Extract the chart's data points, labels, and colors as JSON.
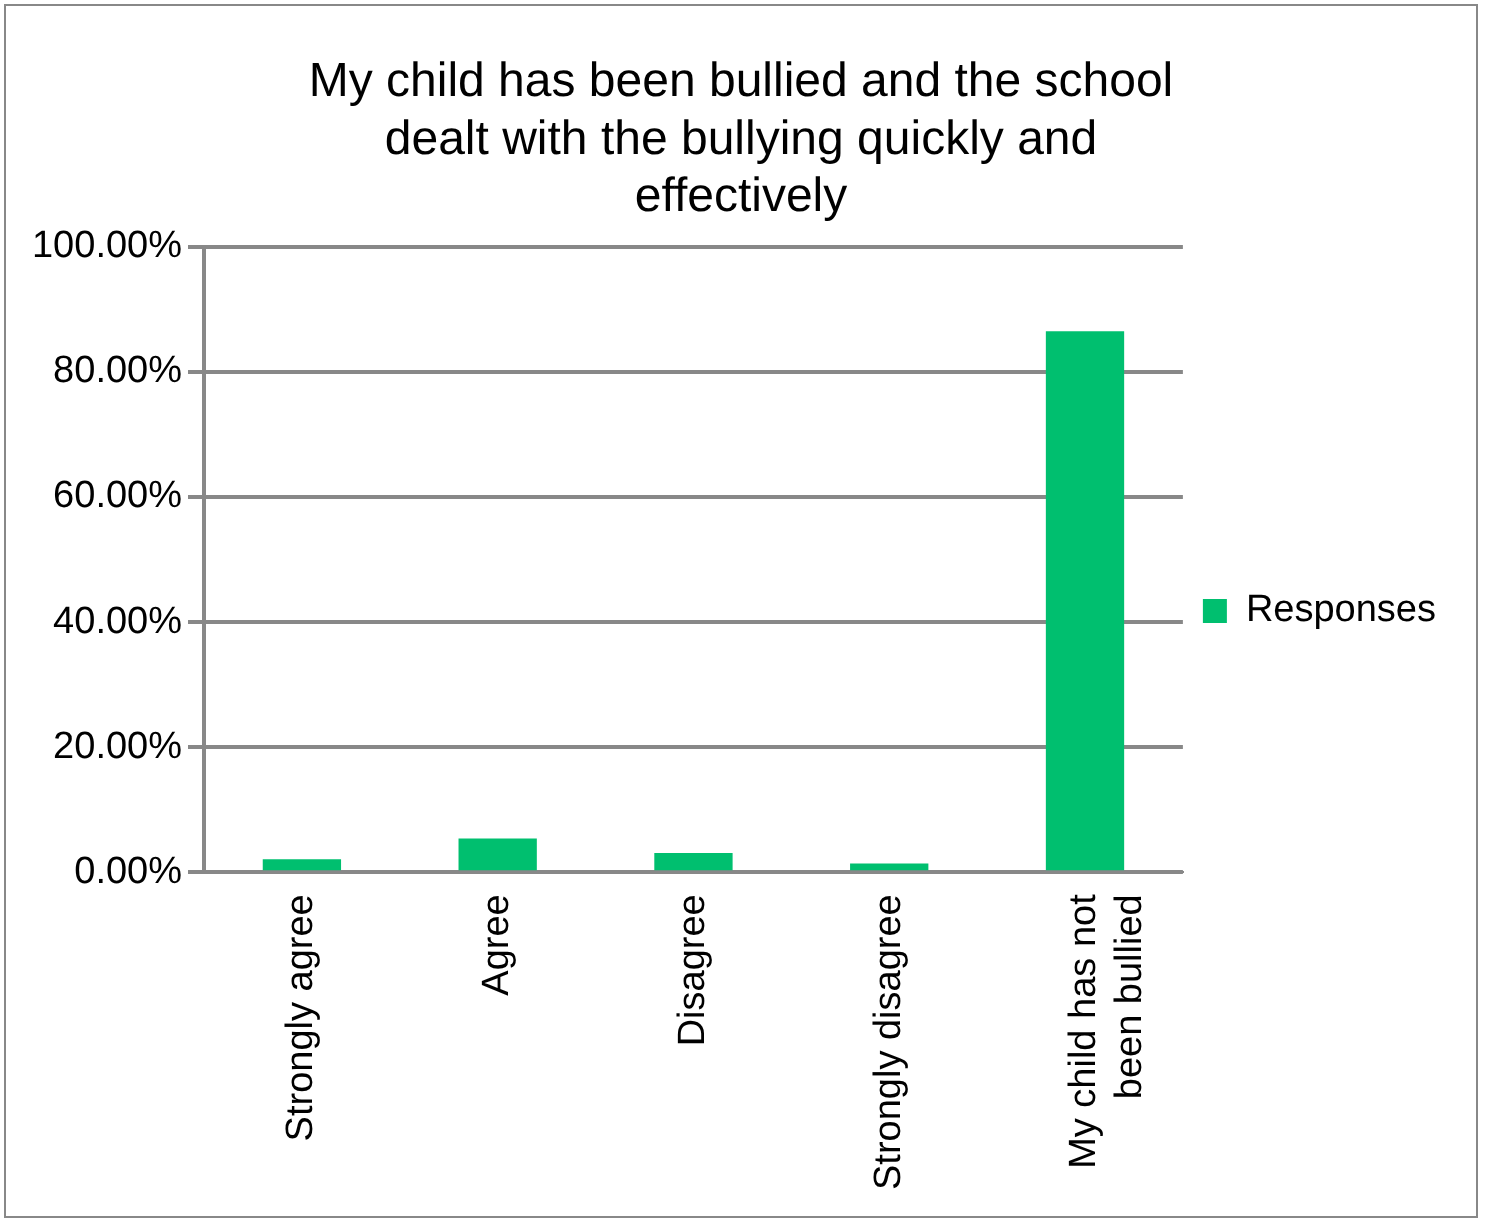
{
  "chart_data": {
    "type": "bar",
    "title": "My child has been bullied and the school dealt with the bullying quickly and effectively",
    "categories": [
      "Strongly agree",
      "Agree",
      "Disagree",
      "Strongly disagree",
      "My child has not been bullied"
    ],
    "series": [
      {
        "name": "Responses",
        "color": "#00bf6f",
        "values": [
          2.1,
          5.4,
          3.1,
          1.4,
          86.5
        ]
      }
    ],
    "ylim": [
      0,
      100
    ],
    "yticks": [
      {
        "value": 0,
        "label": "0.00%"
      },
      {
        "value": 20,
        "label": "20.00%"
      },
      {
        "value": 40,
        "label": "40.00%"
      },
      {
        "value": 60,
        "label": "60.00%"
      },
      {
        "value": 80,
        "label": "80.00%"
      },
      {
        "value": 100,
        "label": "100.00%"
      }
    ],
    "grid": "y",
    "legend": "right"
  }
}
